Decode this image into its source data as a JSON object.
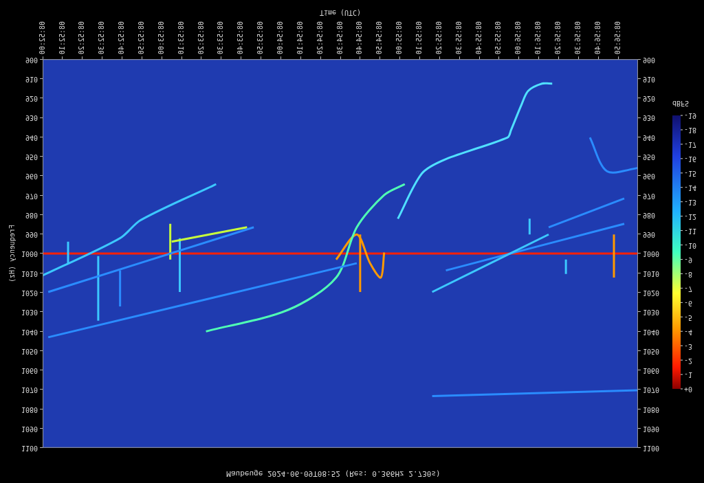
{
  "chart_data": {
    "type": "line",
    "title": "Maubeuge 2024-06-09T08:52 (Res: 0.366Hz 2.730s)",
    "x_label": "Time (UTC)",
    "y_label": "Frequency (Hz)",
    "xlim": [
      0,
      300
    ],
    "xticks": [
      {
        "value": 0,
        "label": "08:52:00"
      },
      {
        "value": 10,
        "label": "08:52:10"
      },
      {
        "value": 20,
        "label": "08:52:20"
      },
      {
        "value": 30,
        "label": "08:52:30"
      },
      {
        "value": 40,
        "label": "08:52:40"
      },
      {
        "value": 50,
        "label": "08:52:50"
      },
      {
        "value": 60,
        "label": "08:53:00"
      },
      {
        "value": 70,
        "label": "08:53:10"
      },
      {
        "value": 80,
        "label": "08:53:20"
      },
      {
        "value": 90,
        "label": "08:53:30"
      },
      {
        "value": 100,
        "label": "08:53:40"
      },
      {
        "value": 110,
        "label": "08:53:50"
      },
      {
        "value": 120,
        "label": "08:54:00"
      },
      {
        "value": 130,
        "label": "08:54:10"
      },
      {
        "value": 140,
        "label": "08:54:20"
      },
      {
        "value": 150,
        "label": "08:54:30"
      },
      {
        "value": 160,
        "label": "08:54:40"
      },
      {
        "value": 170,
        "label": "08:54:50"
      },
      {
        "value": 180,
        "label": "08:55:00"
      },
      {
        "value": 190,
        "label": "08:55:10"
      },
      {
        "value": 200,
        "label": "08:55:20"
      },
      {
        "value": 210,
        "label": "08:55:30"
      },
      {
        "value": 220,
        "label": "08:55:40"
      },
      {
        "value": 230,
        "label": "08:55:50"
      },
      {
        "value": 240,
        "label": "08:56:00"
      },
      {
        "value": 250,
        "label": "08:56:10"
      },
      {
        "value": 260,
        "label": "08:56:20"
      },
      {
        "value": 270,
        "label": "08:56:30"
      },
      {
        "value": 280,
        "label": "08:56:40"
      },
      {
        "value": 290,
        "label": "08:56:50"
      }
    ],
    "ylim": [
      900,
      1100
    ],
    "yticks": [
      900,
      910,
      920,
      930,
      940,
      950,
      960,
      970,
      980,
      990,
      1000,
      1010,
      1020,
      1030,
      1040,
      1050,
      1060,
      1070,
      1080,
      1090,
      1100
    ],
    "grid": false,
    "series": [
      {
        "color": "#3cc8ff",
        "x": [
          0,
          39,
          49.4,
          87.4
        ],
        "values": [
          1011.3,
          992.1,
          982.8,
          964.3
        ]
      },
      {
        "color": "#2a8cff",
        "x": [
          2.8,
          106.4
        ],
        "values": [
          1019.8,
          986.5
        ]
      },
      {
        "color": "#2a8cff",
        "x": [
          2.8,
          158.3
        ],
        "values": [
          1043.1,
          1005
        ]
      },
      {
        "color": "#c8ff3c",
        "x": [
          65,
          103
        ],
        "values": [
          993.9,
          986.5
        ]
      },
      {
        "color": "#50ffb4",
        "x": [
          82.3,
          123.7,
          147.9,
          158.3,
          172.1,
          182.5
        ],
        "values": [
          1040.1,
          1029,
          1012.4,
          986.5,
          969.9,
          964.3
        ]
      },
      {
        "color": "#50e0ff",
        "x": [
          179,
          191.1,
          203.2,
          234.3,
          236,
          241.2,
          244.7,
          251.6,
          256.8
        ],
        "values": [
          982.1,
          958.8,
          951.4,
          940.3,
          936.6,
          923.7,
          916.3,
          912.6,
          912.6
        ]
      },
      {
        "color": "#ff9a00",
        "x": [
          147.9,
          158.3,
          165,
          170.4,
          172.1
        ],
        "values": [
          1003.1,
          990.2,
          1005,
          1012.4,
          999.5
        ]
      },
      {
        "color": "#3cc8ff",
        "x": [
          196.3,
          255
        ],
        "values": [
          1019.8,
          990.2
        ]
      },
      {
        "color": "#2a8cff",
        "x": [
          203.2,
          293.1
        ],
        "values": [
          1008.7,
          984.7
        ]
      },
      {
        "color": "#2a8cff",
        "x": [
          255,
          293.1
        ],
        "values": [
          986.5,
          971.7
        ]
      },
      {
        "color": "#2a8cff",
        "x": [
          275.8,
          284.4,
          300
        ],
        "values": [
          940.3,
          957.7,
          956
        ]
      },
      {
        "color": "#2a8cff",
        "x": [
          196.3,
          300
        ],
        "values": [
          1073.4,
          1070.4
        ]
      },
      {
        "color": "#3cc8ff",
        "x": [
          12.8,
          12.8
        ],
        "values": [
          993.9,
          1005
        ]
      },
      {
        "color": "#3cc8ff",
        "x": [
          28,
          28
        ],
        "values": [
          1001.3,
          1034.6
        ]
      },
      {
        "color": "#2a8cff",
        "x": [
          39,
          39
        ],
        "values": [
          1008.7,
          1027.2
        ]
      },
      {
        "color": "#c8ff3c",
        "x": [
          64.3,
          64.3
        ],
        "values": [
          984.7,
          1003.1
        ]
      },
      {
        "color": "#3cc8ff",
        "x": [
          69.1,
          69.1
        ],
        "values": [
          992.1,
          1019.8
        ]
      },
      {
        "color": "#ff9a00",
        "x": [
          160,
          160
        ],
        "values": [
          990.2,
          1019.8
        ]
      },
      {
        "color": "#3cc8ff",
        "x": [
          245.4,
          245.4
        ],
        "values": [
          982.1,
          990.2
        ]
      },
      {
        "color": "#3cc8ff",
        "x": [
          263.7,
          263.7
        ],
        "values": [
          1003.1,
          1010.5
        ]
      },
      {
        "color": "#ff9a00",
        "x": [
          287.9,
          287.9
        ],
        "values": [
          990.2,
          1012.4
        ]
      },
      {
        "color": "#ff2000",
        "x": [
          0,
          300
        ],
        "values": [
          1000,
          1000
        ]
      }
    ],
    "colorbar": {
      "label": "dBFS",
      "range": [
        -19,
        0
      ],
      "ticks": [
        -19,
        -18,
        -17,
        -16,
        -15,
        -14,
        -13,
        -12,
        -11,
        -10,
        -9,
        -8,
        -7,
        -6,
        -5,
        -4,
        -3,
        -2,
        -1,
        {
          "value": 0,
          "label": "+0"
        }
      ]
    }
  }
}
